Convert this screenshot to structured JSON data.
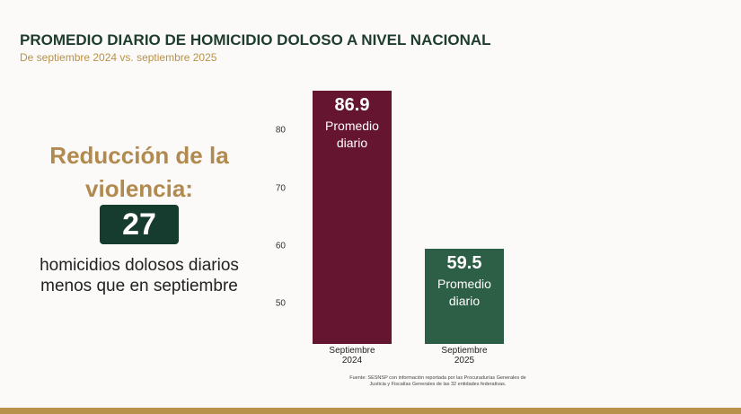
{
  "chart_data": {
    "type": "bar",
    "title": "PROMEDIO DIARIO DE HOMICIDIO DOLOSO A NIVEL NACIONAL",
    "subtitle": "De septiembre 2024 vs. septiembre 2025",
    "categories": [
      "Septiembre 2024",
      "Septiembre 2025"
    ],
    "values": [
      86.9,
      59.5
    ],
    "colors": [
      "#651530",
      "#2d5e46"
    ],
    "bar_label": "Promedio diario",
    "ylim": [
      43,
      90
    ],
    "yticks": [
      50,
      60,
      70,
      80
    ],
    "source": "Fuente: SESNSP con información reportada por las Procuradurías Generales de Justicia y Fiscalías Generales de las 32 entidades federativas."
  },
  "summary": {
    "heading": "Reducción de la violencia:",
    "number": "27",
    "text": "homicidios dolosos diarios menos que en septiembre"
  }
}
